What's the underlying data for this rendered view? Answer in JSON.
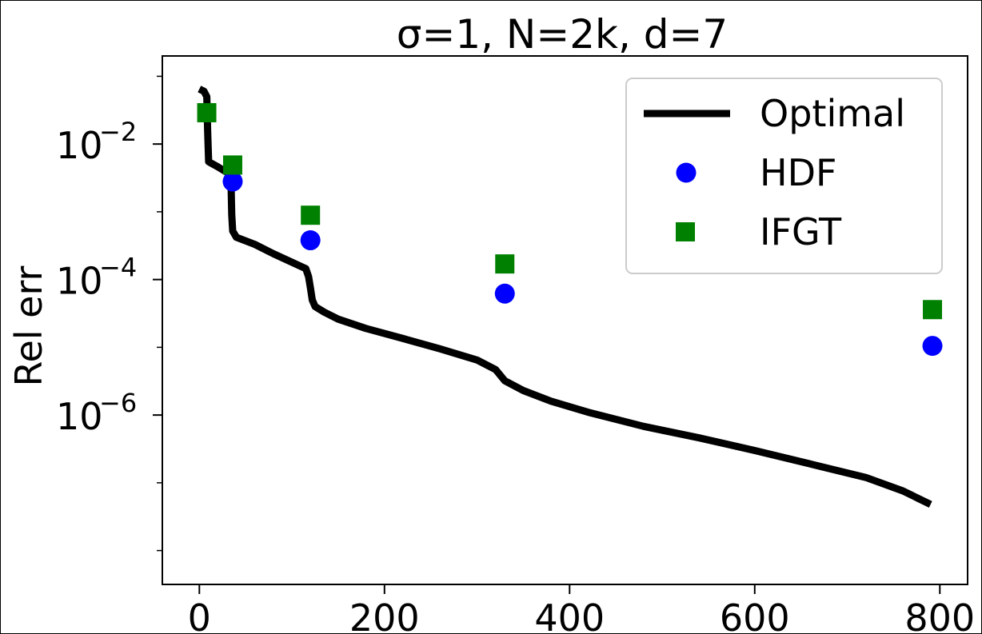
{
  "chart_data": {
    "type": "line",
    "title": "σ=1, N=2k, d=7",
    "xlabel": "",
    "ylabel": "Rel err",
    "xlim": [
      -40,
      830
    ],
    "ylim_log10": [
      -8.5,
      -0.7
    ],
    "yscale": "log",
    "x_ticks": [
      0,
      200,
      400,
      600,
      800
    ],
    "x_tick_labels": [
      "0",
      "200",
      "400",
      "600",
      "800"
    ],
    "y_ticks_log10": [
      -2,
      -4,
      -6
    ],
    "y_tick_labels": [
      {
        "base": "10",
        "exp": "−2"
      },
      {
        "base": "10",
        "exp": "−4"
      },
      {
        "base": "10",
        "exp": "−6"
      }
    ],
    "legend_position": "top-right",
    "grid": false,
    "series": [
      {
        "name": "Optimal",
        "kind": "line",
        "color": "#000000",
        "x": [
          0,
          5,
          8,
          9,
          10,
          13,
          20,
          30,
          34,
          35,
          36,
          40,
          60,
          80,
          100,
          115,
          118,
          120,
          122,
          125,
          135,
          150,
          180,
          220,
          260,
          300,
          320,
          330,
          350,
          380,
          420,
          480,
          540,
          600,
          660,
          720,
          760,
          790
        ],
        "y": [
          0.065,
          0.06,
          0.05,
          0.015,
          0.0055,
          0.0052,
          0.0046,
          0.0038,
          0.0034,
          0.0009,
          0.00052,
          0.00042,
          0.00033,
          0.00024,
          0.00018,
          0.000145,
          0.00011,
          7.5e-05,
          5e-05,
          4e-05,
          3.3e-05,
          2.6e-05,
          1.9e-05,
          1.35e-05,
          9.5e-06,
          6.5e-06,
          4.7e-06,
          3.2e-06,
          2.3e-06,
          1.6e-06,
          1.1e-06,
          6.8e-07,
          4.6e-07,
          3e-07,
          1.9e-07,
          1.2e-07,
          7.6e-08,
          4.8e-08
        ]
      },
      {
        "name": "HDF",
        "kind": "scatter-circle",
        "color": "#0000ff",
        "x": [
          36,
          120,
          330,
          792
        ],
        "y": [
          0.0028,
          0.00038,
          6.2e-05,
          1.05e-05
        ]
      },
      {
        "name": "IFGT",
        "kind": "scatter-square",
        "color": "#008000",
        "x": [
          8,
          36,
          120,
          330,
          792
        ],
        "y": [
          0.029,
          0.0049,
          0.00089,
          0.00017,
          3.6e-05
        ]
      }
    ]
  }
}
